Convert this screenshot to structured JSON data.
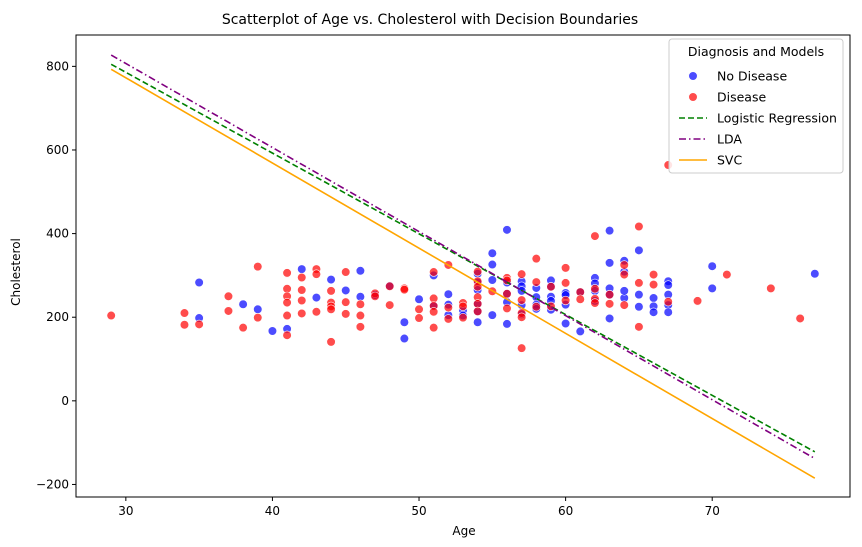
{
  "chart_data": {
    "type": "scatter",
    "title": "Scatterplot of Age vs. Cholesterol with Decision Boundaries",
    "xlabel": "Age",
    "ylabel": "Cholesterol",
    "xlim": [
      26.6,
      79.4
    ],
    "ylim": [
      -230,
      875
    ],
    "xticks": [
      30,
      40,
      50,
      60,
      70
    ],
    "yticks": [
      -200,
      0,
      200,
      400,
      600,
      800
    ],
    "legend": {
      "title": "Diagnosis and Models",
      "placement": "top-right",
      "entries": [
        "No Disease",
        "Disease",
        "Logistic Regression",
        "LDA",
        "SVC"
      ]
    },
    "colors": {
      "no_disease": "#0000ff",
      "disease": "#ff0000",
      "logistic_regression": "#008000",
      "lda": "#800080",
      "svc": "#ffa500"
    },
    "series": [
      {
        "name": "No Disease",
        "points": [
          [
            35,
            283
          ],
          [
            35,
            198
          ],
          [
            38,
            231
          ],
          [
            39,
            219
          ],
          [
            40,
            167
          ],
          [
            41,
            172
          ],
          [
            42,
            315
          ],
          [
            43,
            247
          ],
          [
            44,
            290
          ],
          [
            45,
            264
          ],
          [
            46,
            311
          ],
          [
            46,
            249
          ],
          [
            47,
            253
          ],
          [
            48,
            275
          ],
          [
            49,
            149
          ],
          [
            49,
            188
          ],
          [
            50,
            243
          ],
          [
            51,
            300
          ],
          [
            51,
            227
          ],
          [
            52,
            255
          ],
          [
            52,
            205
          ],
          [
            52,
            230
          ],
          [
            53,
            216
          ],
          [
            53,
            204
          ],
          [
            54,
            304
          ],
          [
            54,
            283
          ],
          [
            54,
            265
          ],
          [
            54,
            232
          ],
          [
            54,
            214
          ],
          [
            54,
            188
          ],
          [
            55,
            353
          ],
          [
            55,
            326
          ],
          [
            55,
            289
          ],
          [
            55,
            205
          ],
          [
            56,
            409
          ],
          [
            56,
            283
          ],
          [
            56,
            256
          ],
          [
            56,
            236
          ],
          [
            56,
            184
          ],
          [
            57,
            286
          ],
          [
            57,
            274
          ],
          [
            57,
            263
          ],
          [
            57,
            229
          ],
          [
            57,
            207
          ],
          [
            58,
            270
          ],
          [
            58,
            248
          ],
          [
            58,
            230
          ],
          [
            58,
            220
          ],
          [
            59,
            288
          ],
          [
            59,
            273
          ],
          [
            59,
            249
          ],
          [
            59,
            239
          ],
          [
            59,
            218
          ],
          [
            60,
            258
          ],
          [
            60,
            253
          ],
          [
            60,
            230
          ],
          [
            60,
            185
          ],
          [
            61,
            260
          ],
          [
            61,
            166
          ],
          [
            62,
            294
          ],
          [
            62,
            281
          ],
          [
            62,
            263
          ],
          [
            62,
            239
          ],
          [
            63,
            407
          ],
          [
            63,
            330
          ],
          [
            63,
            269
          ],
          [
            63,
            254
          ],
          [
            63,
            197
          ],
          [
            64,
            335
          ],
          [
            64,
            309
          ],
          [
            64,
            246
          ],
          [
            64,
            263
          ],
          [
            65,
            360
          ],
          [
            65,
            254
          ],
          [
            65,
            225
          ],
          [
            66,
            246
          ],
          [
            66,
            226
          ],
          [
            66,
            212
          ],
          [
            67,
            286
          ],
          [
            67,
            277
          ],
          [
            67,
            254
          ],
          [
            67,
            229
          ],
          [
            67,
            212
          ],
          [
            70,
            322
          ],
          [
            70,
            269
          ],
          [
            77,
            304
          ]
        ]
      },
      {
        "name": "Disease",
        "points": [
          [
            29,
            204
          ],
          [
            34,
            210
          ],
          [
            34,
            182
          ],
          [
            35,
            183
          ],
          [
            37,
            250
          ],
          [
            37,
            215
          ],
          [
            38,
            175
          ],
          [
            39,
            321
          ],
          [
            39,
            199
          ],
          [
            41,
            306
          ],
          [
            41,
            268
          ],
          [
            41,
            250
          ],
          [
            41,
            235
          ],
          [
            41,
            204
          ],
          [
            41,
            157
          ],
          [
            42,
            295
          ],
          [
            42,
            265
          ],
          [
            42,
            240
          ],
          [
            42,
            209
          ],
          [
            43,
            315
          ],
          [
            43,
            303
          ],
          [
            43,
            213
          ],
          [
            44,
            263
          ],
          [
            44,
            235
          ],
          [
            44,
            226
          ],
          [
            44,
            219
          ],
          [
            44,
            141
          ],
          [
            45,
            308
          ],
          [
            45,
            236
          ],
          [
            45,
            208
          ],
          [
            46,
            231
          ],
          [
            46,
            204
          ],
          [
            46,
            177
          ],
          [
            47,
            257
          ],
          [
            47,
            250
          ],
          [
            48,
            274
          ],
          [
            48,
            229
          ],
          [
            49,
            269
          ],
          [
            49,
            266
          ],
          [
            50,
            219
          ],
          [
            50,
            198
          ],
          [
            51,
            308
          ],
          [
            51,
            245
          ],
          [
            51,
            227
          ],
          [
            51,
            213
          ],
          [
            51,
            175
          ],
          [
            52,
            325
          ],
          [
            52,
            223
          ],
          [
            52,
            196
          ],
          [
            53,
            234
          ],
          [
            53,
            226
          ],
          [
            53,
            199
          ],
          [
            54,
            309
          ],
          [
            54,
            286
          ],
          [
            54,
            273
          ],
          [
            54,
            248
          ],
          [
            54,
            232
          ],
          [
            54,
            214
          ],
          [
            55,
            262
          ],
          [
            56,
            294
          ],
          [
            56,
            288
          ],
          [
            56,
            256
          ],
          [
            56,
            221
          ],
          [
            57,
            303
          ],
          [
            57,
            241
          ],
          [
            57,
            210
          ],
          [
            57,
            200
          ],
          [
            57,
            126
          ],
          [
            58,
            340
          ],
          [
            58,
            284
          ],
          [
            58,
            225
          ],
          [
            59,
            273
          ],
          [
            59,
            226
          ],
          [
            60,
            318
          ],
          [
            60,
            282
          ],
          [
            60,
            240
          ],
          [
            61,
            260
          ],
          [
            61,
            243
          ],
          [
            62,
            394
          ],
          [
            62,
            268
          ],
          [
            62,
            244
          ],
          [
            62,
            234
          ],
          [
            63,
            254
          ],
          [
            63,
            232
          ],
          [
            64,
            325
          ],
          [
            64,
            302
          ],
          [
            64,
            229
          ],
          [
            65,
            417
          ],
          [
            65,
            282
          ],
          [
            65,
            177
          ],
          [
            66,
            302
          ],
          [
            66,
            278
          ],
          [
            67,
            564
          ],
          [
            67,
            237
          ],
          [
            69,
            239
          ],
          [
            71,
            302
          ],
          [
            74,
            269
          ],
          [
            76,
            197
          ]
        ]
      },
      {
        "name": "Logistic Regression",
        "line": [
          [
            29,
            805
          ],
          [
            77,
            -122
          ]
        ]
      },
      {
        "name": "LDA",
        "line": [
          [
            29,
            827
          ],
          [
            77,
            -138
          ]
        ]
      },
      {
        "name": "SVC",
        "line": [
          [
            29,
            793
          ],
          [
            77,
            -185
          ]
        ]
      }
    ]
  }
}
